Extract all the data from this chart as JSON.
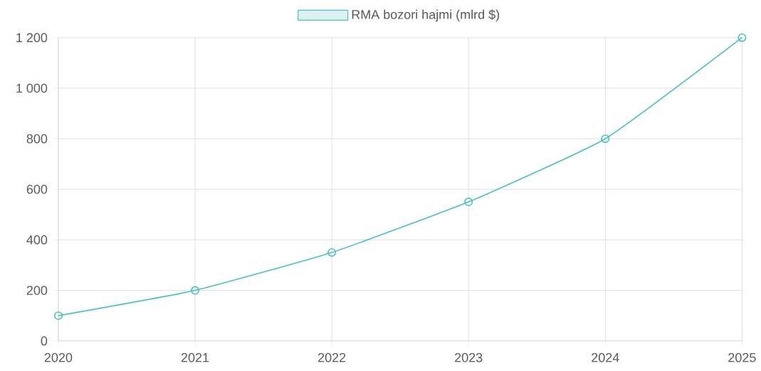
{
  "chart_data": {
    "type": "line",
    "categories": [
      "2020",
      "2021",
      "2022",
      "2023",
      "2024",
      "2025"
    ],
    "series": [
      {
        "name": "RMA bozori hajmi (mlrd $)",
        "color": "#4bc0c0",
        "values": [
          100,
          200,
          350,
          550,
          800,
          1200
        ]
      }
    ],
    "ylim": [
      0,
      1200
    ],
    "yticks": [
      0,
      200,
      400,
      600,
      800,
      {
        "value": 1000,
        "label": "1 000"
      },
      {
        "value": 1200,
        "label": "1 200"
      }
    ],
    "grid": true,
    "legend": "top",
    "marker": "circle",
    "line_style": "solid"
  }
}
